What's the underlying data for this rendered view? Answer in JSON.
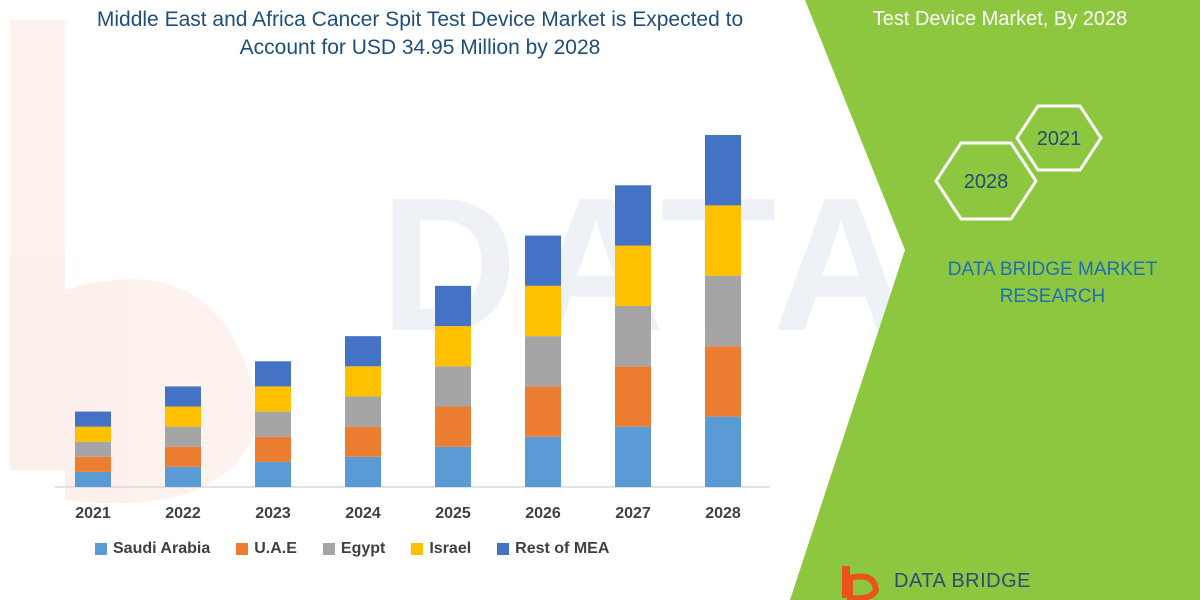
{
  "title_line1": "Middle East and Africa Cancer Spit Test Device Market is Expected to",
  "title_line2": "Account for USD 34.95 Million by 2028",
  "side_title": "Test Device Market, By 2028",
  "hexagons": {
    "year_a": "2021",
    "year_b": "2028"
  },
  "brand": {
    "line1": "DATA BRIDGE MARKET",
    "line2": "RESEARCH",
    "footer_text": "DATA BRIDGE"
  },
  "colors": {
    "Saudi Arabia": "#5b9bd5",
    "U.A.E": "#ed7d31",
    "Egypt": "#a5a5a5",
    "Israel": "#ffc000",
    "Rest of MEA": "#4472c4",
    "panel_green": "#8dc63f",
    "title_blue": "#1f4e79"
  },
  "chart_data": {
    "type": "bar",
    "stacked": true,
    "categories": [
      "2021",
      "2022",
      "2023",
      "2024",
      "2025",
      "2026",
      "2027",
      "2028"
    ],
    "series": [
      {
        "name": "Saudi Arabia",
        "values": [
          3,
          4,
          5,
          6,
          8,
          10,
          12,
          14
        ]
      },
      {
        "name": "U.A.E",
        "values": [
          3,
          4,
          5,
          6,
          8,
          10,
          12,
          14
        ]
      },
      {
        "name": "Egypt",
        "values": [
          3,
          4,
          5,
          6,
          8,
          10,
          12,
          14
        ]
      },
      {
        "name": "Israel",
        "values": [
          3,
          4,
          5,
          6,
          8,
          10,
          12,
          14
        ]
      },
      {
        "name": "Rest of MEA",
        "values": [
          3,
          4,
          5,
          6,
          8,
          10,
          12,
          14
        ]
      }
    ],
    "title": "",
    "xlabel": "",
    "ylabel": "",
    "ylim": [
      0,
      70
    ],
    "grid": false,
    "legend_position": "bottom"
  }
}
